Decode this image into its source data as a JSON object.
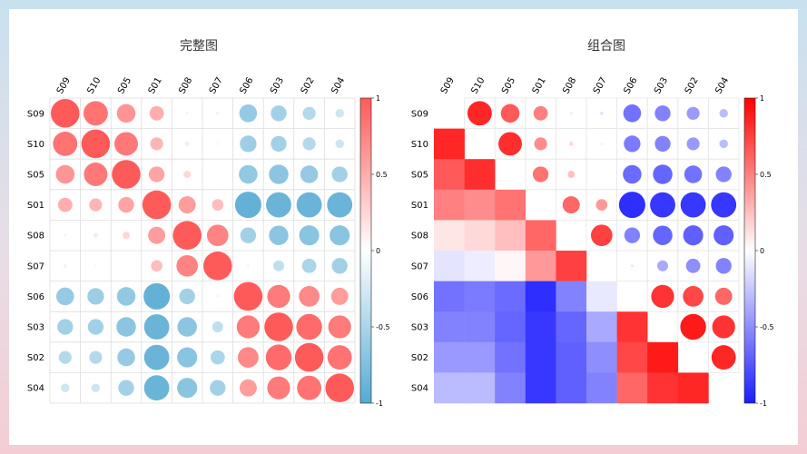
{
  "chart_data": [
    {
      "type": "heatmap",
      "title": "完整图",
      "variables": [
        "S09",
        "S10",
        "S05",
        "S01",
        "S08",
        "S07",
        "S06",
        "S03",
        "S02",
        "S04"
      ],
      "matrix": [
        [
          1.0,
          0.85,
          0.65,
          0.5,
          0.1,
          -0.12,
          -0.62,
          -0.55,
          -0.45,
          -0.3
        ],
        [
          0.85,
          1.0,
          0.82,
          0.45,
          0.15,
          -0.08,
          -0.58,
          -0.55,
          -0.45,
          -0.3
        ],
        [
          0.65,
          0.82,
          1.0,
          0.55,
          0.25,
          0.03,
          -0.65,
          -0.68,
          -0.62,
          -0.55
        ],
        [
          0.5,
          0.45,
          0.55,
          1.0,
          0.6,
          0.4,
          -0.92,
          -0.88,
          -0.88,
          -0.88
        ],
        [
          0.1,
          0.15,
          0.25,
          0.6,
          1.0,
          0.75,
          -0.55,
          -0.68,
          -0.7,
          -0.7
        ],
        [
          -0.12,
          -0.08,
          0.03,
          0.4,
          0.75,
          1.0,
          -0.1,
          -0.38,
          -0.5,
          -0.55
        ],
        [
          -0.62,
          -0.58,
          -0.65,
          -0.92,
          -0.55,
          -0.1,
          1.0,
          0.8,
          0.72,
          0.6
        ],
        [
          -0.55,
          -0.55,
          -0.68,
          -0.88,
          -0.68,
          -0.38,
          0.8,
          1.0,
          0.9,
          0.8
        ],
        [
          -0.45,
          -0.45,
          -0.62,
          -0.88,
          -0.7,
          -0.5,
          0.72,
          0.9,
          1.0,
          0.85
        ],
        [
          -0.3,
          -0.3,
          -0.55,
          -0.88,
          -0.7,
          -0.55,
          0.6,
          0.8,
          0.85,
          1.0
        ]
      ],
      "colorbar": {
        "ticks": [
          1,
          0.5,
          0,
          -0.5,
          -1
        ],
        "range": [
          -1,
          1
        ]
      },
      "colors": {
        "positive": "#ff5a5a",
        "negative": "#56aad3"
      }
    },
    {
      "type": "heatmap",
      "title": "组合图",
      "variables": [
        "S09",
        "S10",
        "S05",
        "S01",
        "S08",
        "S07",
        "S06",
        "S03",
        "S02",
        "S04"
      ],
      "upper": "circles",
      "lower": "squares",
      "colorbar": {
        "ticks": [
          1,
          0.5,
          0,
          -0.5,
          -1
        ],
        "range": [
          -1,
          1
        ]
      },
      "colors": {
        "positive": "#ff0000",
        "negative": "#1c1cff"
      }
    }
  ]
}
